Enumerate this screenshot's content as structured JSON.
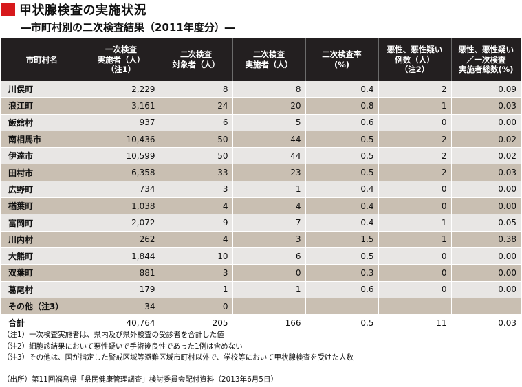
{
  "header": {
    "title": "甲状腺検査の実施状況",
    "subtitle": "―市町村別の二次検査結果（2011年度分）―"
  },
  "table": {
    "columns": [
      "市町村名",
      "一次検査\n実施者（人）\n（注1）",
      "二次検査\n対象者（人）",
      "二次検査\n実施者（人）",
      "二次検査率\n(%)",
      "悪性、悪性疑い\n例数（人）\n（注2）",
      "悪性、悪性疑い\n／一次検査\n実施者総数(%)"
    ],
    "rows": [
      [
        "川俣町",
        "2,229",
        "8",
        "8",
        "0.4",
        "2",
        "0.09"
      ],
      [
        "浪江町",
        "3,161",
        "24",
        "20",
        "0.8",
        "1",
        "0.03"
      ],
      [
        "飯舘村",
        "937",
        "6",
        "5",
        "0.6",
        "0",
        "0.00"
      ],
      [
        "南相馬市",
        "10,436",
        "50",
        "44",
        "0.5",
        "2",
        "0.02"
      ],
      [
        "伊達市",
        "10,599",
        "50",
        "44",
        "0.5",
        "2",
        "0.02"
      ],
      [
        "田村市",
        "6,358",
        "33",
        "23",
        "0.5",
        "2",
        "0.03"
      ],
      [
        "広野町",
        "734",
        "3",
        "1",
        "0.4",
        "0",
        "0.00"
      ],
      [
        "楢葉町",
        "1,038",
        "4",
        "4",
        "0.4",
        "0",
        "0.00"
      ],
      [
        "富岡町",
        "2,072",
        "9",
        "7",
        "0.4",
        "1",
        "0.05"
      ],
      [
        "川内村",
        "262",
        "4",
        "3",
        "1.5",
        "1",
        "0.38"
      ],
      [
        "大熊町",
        "1,844",
        "10",
        "6",
        "0.5",
        "0",
        "0.00"
      ],
      [
        "双葉町",
        "881",
        "3",
        "0",
        "0.3",
        "0",
        "0.00"
      ],
      [
        "葛尾村",
        "179",
        "1",
        "1",
        "0.6",
        "0",
        "0.00"
      ],
      [
        "その他（注3）",
        "34",
        "0",
        "―",
        "―",
        "―",
        "―"
      ]
    ],
    "total": [
      "合計",
      "40,764",
      "205",
      "166",
      "0.5",
      "11",
      "0.03"
    ]
  },
  "notes": [
    "（注1）一次検査実施者は、県内及び県外検査の受診者を合計した値",
    "（注2）細胞診結果において悪性疑いで手術後良性であった1例は含めない",
    "（注3）その他は、国が指定した警戒区域等避難区域市町村以外で、学校等において甲状腺検査を受けた人数"
  ],
  "source": "（出所）第11回福島県「県民健康管理調査」検討委員会配付資料（2013年6月5日）",
  "colors": {
    "title_mark": "#d7191c",
    "header_bg": "#231f20",
    "row_light": "#e8e6e4",
    "row_dark": "#c9bfb2"
  }
}
